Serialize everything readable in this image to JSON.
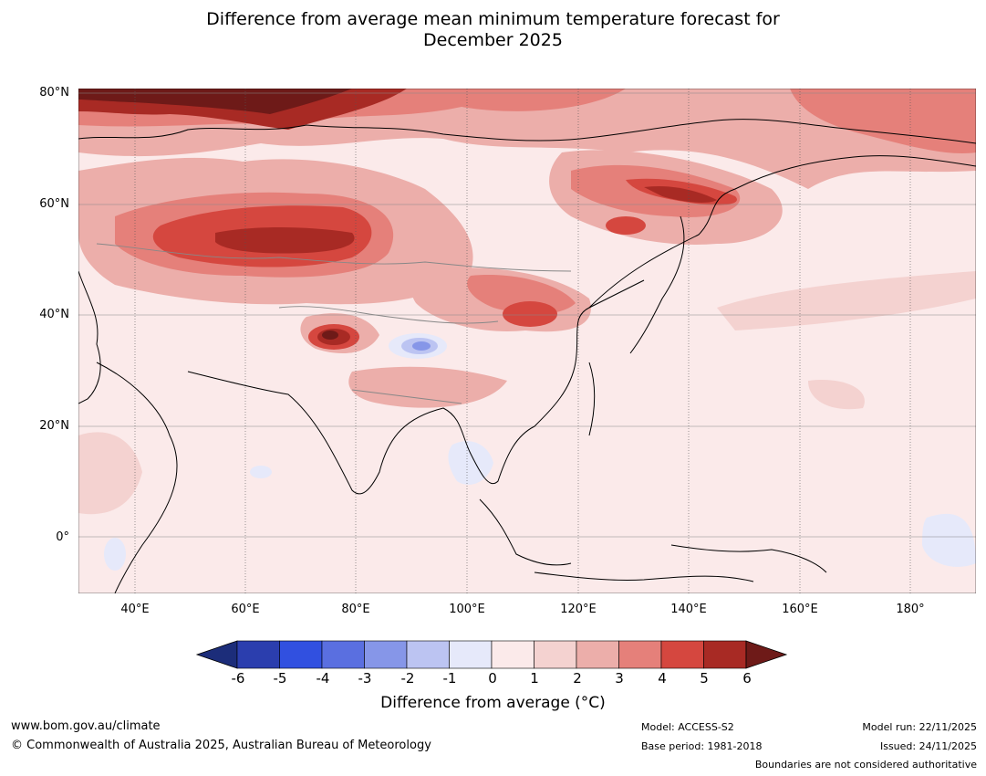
{
  "title_line1": "Difference from average mean minimum temperature forecast for",
  "title_line2": "December 2025",
  "lat_labels": [
    "80°N",
    "60°N",
    "40°N",
    "20°N",
    "0°"
  ],
  "lon_labels": [
    "40°E",
    "60°E",
    "80°E",
    "100°E",
    "120°E",
    "140°E",
    "160°E",
    "180°"
  ],
  "colorbar": {
    "ticks": [
      "-6",
      "-5",
      "-4",
      "-3",
      "-2",
      "-1",
      "0",
      "1",
      "2",
      "3",
      "4",
      "5",
      "6"
    ],
    "colors": [
      "#1c2d7a",
      "#2b3eae",
      "#3150e0",
      "#5a6fe0",
      "#8696e8",
      "#bcc4f2",
      "#e6e9fa",
      "#fbeaea",
      "#f4d2d0",
      "#ecaeaa",
      "#e5807a",
      "#d5473f",
      "#a82a24",
      "#6e1a18"
    ],
    "label": "Difference from average (°C)"
  },
  "footer": {
    "website": "www.bom.gov.au/climate",
    "copyright": "© Commonwealth of Australia 2025, Australian Bureau of Meteorology",
    "model": "Model: ACCESS-S2",
    "base_period": "Base period: 1981-2018",
    "model_run": "Model run: 22/11/2025",
    "issued": "Issued: 24/11/2025",
    "disclaimer": "Boundaries are not considered authoritative"
  }
}
